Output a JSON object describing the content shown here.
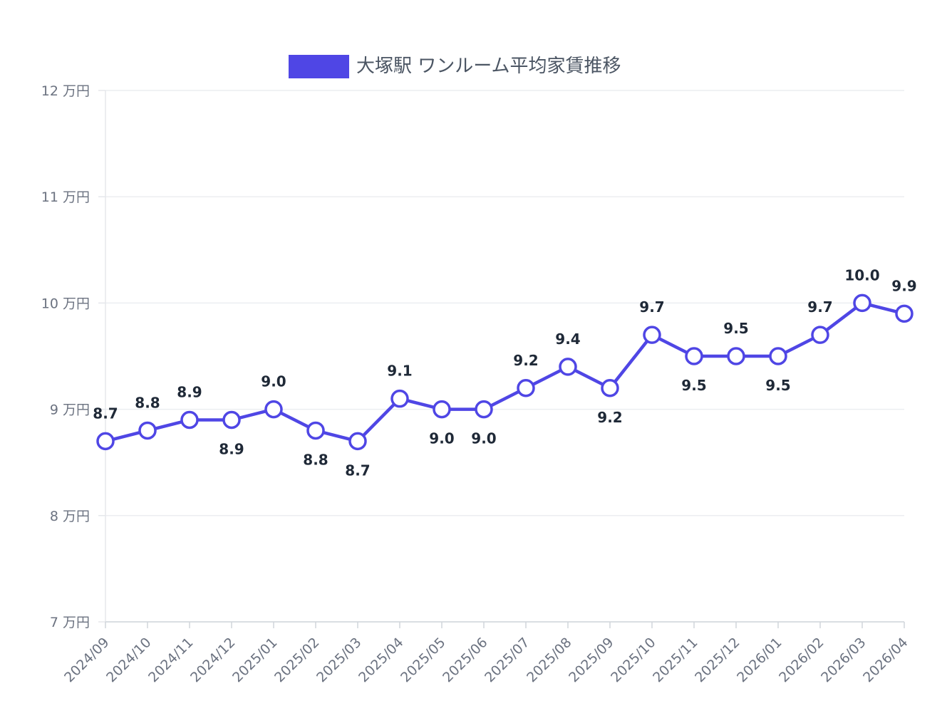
{
  "chart_data": {
    "type": "line",
    "title": "",
    "xlabel": "",
    "ylabel": "",
    "y_unit": "万円",
    "ylim": [
      7,
      12
    ],
    "ytick_values": [
      7,
      8,
      9,
      10,
      11,
      12
    ],
    "grid": true,
    "legend_placement": "top-center",
    "categories": [
      "2024/09",
      "2024/10",
      "2024/11",
      "2024/12",
      "2025/01",
      "2025/02",
      "2025/03",
      "2025/04",
      "2025/05",
      "2025/06",
      "2025/07",
      "2025/08",
      "2025/09",
      "2025/10",
      "2025/11",
      "2025/12",
      "2026/01",
      "2026/02",
      "2026/03",
      "2026/04"
    ],
    "series": [
      {
        "name": "大塚駅 ワンルーム平均家賃推移",
        "color": "#4f46e5",
        "values": [
          8.7,
          8.8,
          8.9,
          8.9,
          9.0,
          8.8,
          8.7,
          9.1,
          9.0,
          9.0,
          9.2,
          9.4,
          9.2,
          9.7,
          9.5,
          9.5,
          9.5,
          9.7,
          10.0,
          9.9
        ],
        "labels": [
          "8.7",
          "8.8",
          "8.9",
          "8.9",
          "9.0",
          "8.8",
          "8.7",
          "9.1",
          "9.0",
          "9.0",
          "9.2",
          "9.4",
          "9.2",
          "9.7",
          "9.5",
          "9.5",
          "9.5",
          "9.7",
          "10.0",
          "9.9"
        ]
      }
    ]
  }
}
